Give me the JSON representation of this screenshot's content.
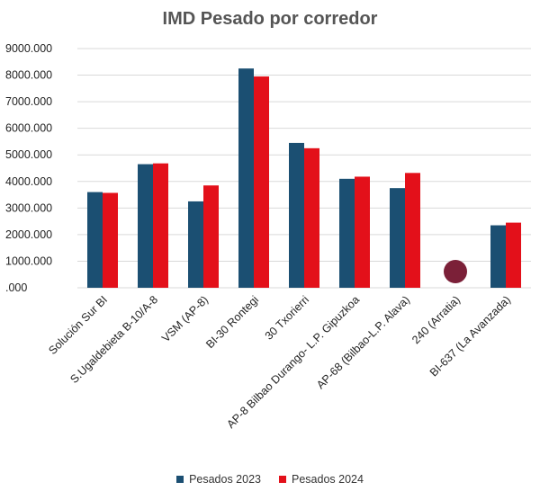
{
  "chart_data": {
    "type": "bar",
    "title": "IMD Pesado por corredor",
    "xlabel": "",
    "ylabel": "",
    "ylim": [
      0,
      9000
    ],
    "yticks": [
      0,
      1000,
      2000,
      3000,
      4000,
      5000,
      6000,
      7000,
      8000,
      9000
    ],
    "ytick_labels": [
      ".000",
      "1000.000",
      "2000.000",
      "3000.000",
      "4000.000",
      "5000.000",
      "6000.000",
      "7000.000",
      "8000.000",
      "9000.000"
    ],
    "grid": true,
    "legend_position": "bottom",
    "categories": [
      "Solución Sur BI",
      "S.Ugaldebieta B-10/A-8",
      "VSM (AP-8)",
      "BI-30 Rontegi",
      "30 Txorierri",
      "AP-8 Bilbao Durango- L.P. Gipuzkoa",
      "AP-68 (Bilbao-L.P. Alava)",
      "240 (Arratia)",
      "BI-637 (La Avanzada)"
    ],
    "series": [
      {
        "name": "Pesados 2023",
        "color": "#1B4F72",
        "values": [
          3600,
          4650,
          3250,
          8250,
          5450,
          4100,
          3750,
          null,
          2350
        ]
      },
      {
        "name": "Pesados 2024",
        "color": "#E3101A",
        "values": [
          3570,
          4680,
          3850,
          7950,
          5250,
          4180,
          4320,
          null,
          2450
        ]
      }
    ],
    "marker_color": "#7B2038"
  }
}
